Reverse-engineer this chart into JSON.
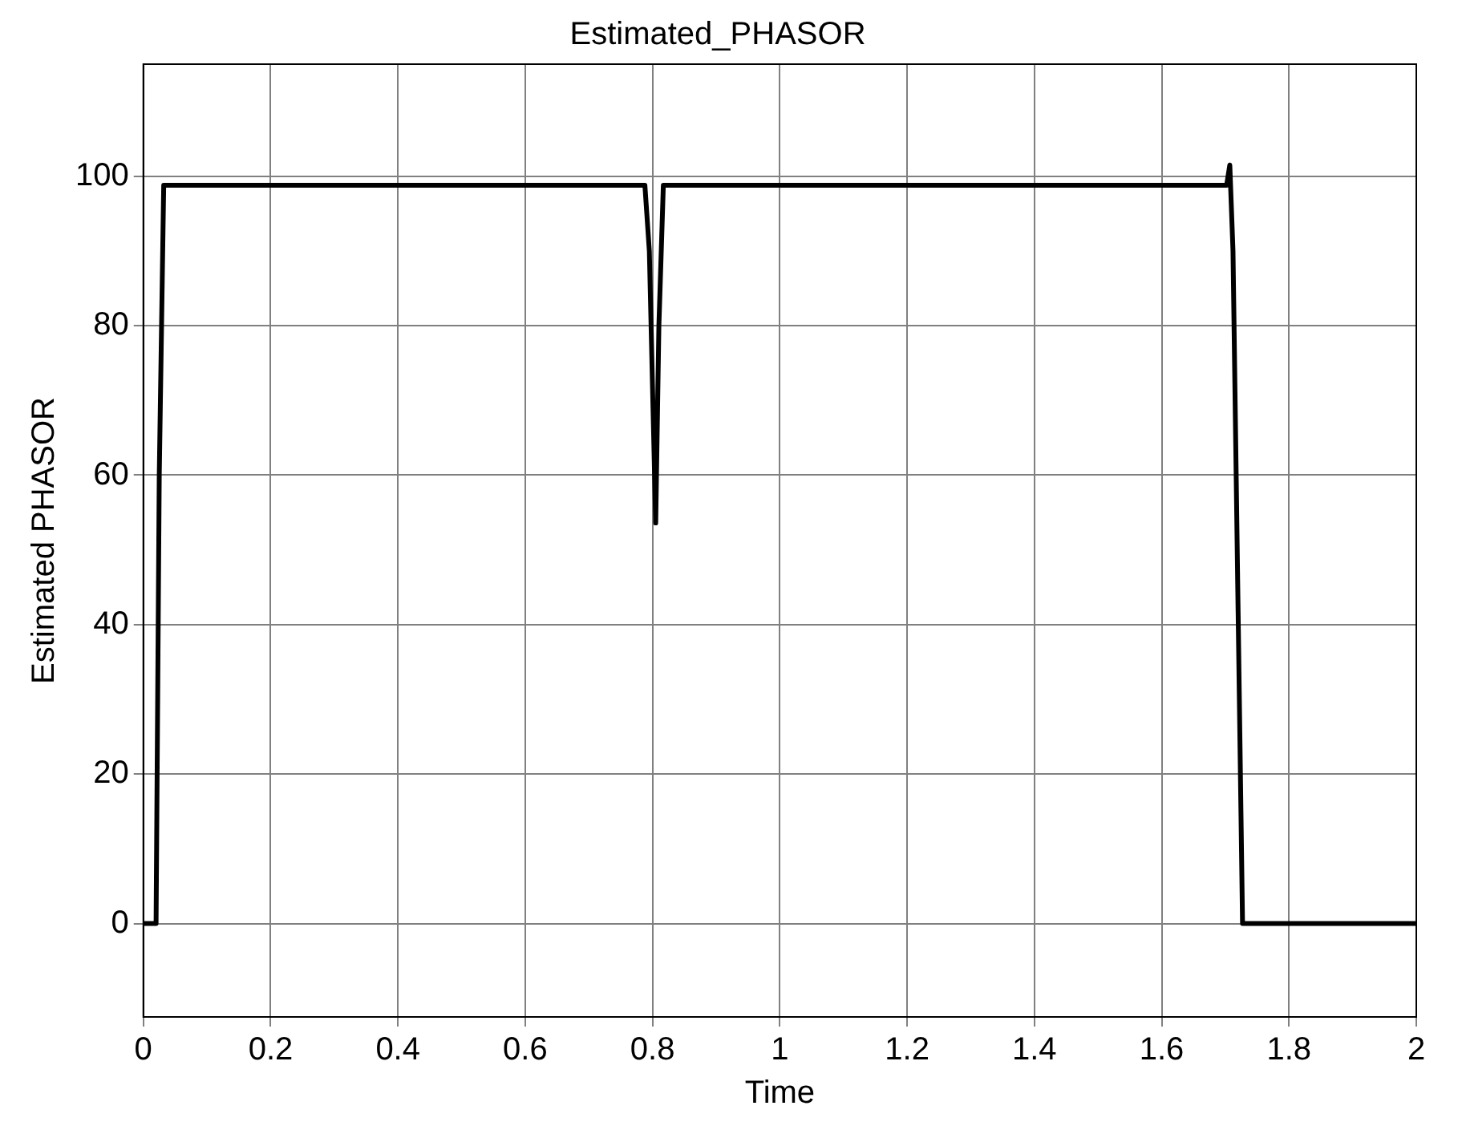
{
  "chart_data": {
    "type": "line",
    "title": "Estimated_PHASOR",
    "xlabel": "Time",
    "ylabel": "Estimated PHASOR",
    "x": [
      0,
      0.02,
      0.025,
      0.032,
      0.1,
      0.5,
      0.788,
      0.795,
      0.805,
      0.81,
      0.817,
      1.0,
      1.5,
      1.702,
      1.707,
      1.712,
      1.727,
      1.8,
      2
    ],
    "series": [
      {
        "color": "#000000",
        "values": [
          0,
          0,
          60,
          98.8,
          98.8,
          98.8,
          98.8,
          90,
          53.6,
          80,
          98.8,
          98.8,
          98.8,
          98.8,
          101.5,
          90,
          0,
          0,
          0
        ]
      }
    ],
    "xlim": [
      0,
      2
    ],
    "ylim": [
      -12.5,
      115
    ],
    "xticks": [
      0,
      0.2,
      0.4,
      0.6,
      0.8,
      1,
      1.2,
      1.4,
      1.6,
      1.8,
      2
    ],
    "yticks": [
      0,
      20,
      40,
      60,
      80,
      100
    ],
    "grid": true,
    "legend": false,
    "marker": "none",
    "line_style": "solid"
  }
}
